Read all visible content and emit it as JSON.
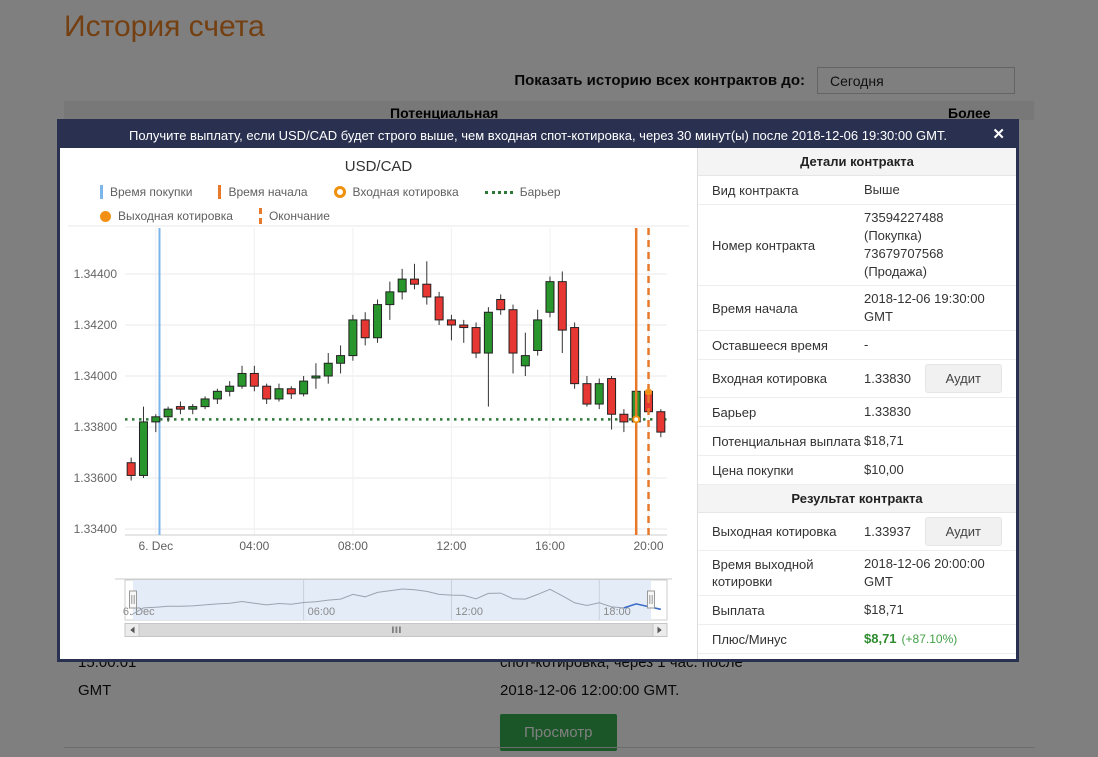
{
  "page": {
    "title": "История счета",
    "filter_label": "Показать историю всех контрактов до:",
    "filter_value": "Сегодня",
    "col_potential": "Потенциальная",
    "col_more": "Более",
    "row_time": "15:00:01",
    "row_gmt": "GMT",
    "row_desc1": "спот-котировка, через 1 час. после",
    "row_desc2": "2018-12-06 12:00:00 GMT.",
    "view_button": "Просмотр"
  },
  "modal": {
    "header": "Получите выплату, если USD/CAD будет строго выше, чем входная спот-котировка, через 30 минут(ы) после 2018-12-06 19:30:00 GMT.",
    "close_icon": "✕"
  },
  "contract_details": {
    "section1_title": "Детали контракта",
    "rows1": [
      {
        "label": "Вид контракта",
        "value": "Выше"
      },
      {
        "label": "Номер контракта",
        "value": [
          "73594227488 (Покупка)",
          "73679707568 (Продажа)"
        ]
      },
      {
        "label": "Время начала",
        "value": "2018-12-06 19:30:00 GMT"
      },
      {
        "label": "Оставшееся время",
        "value": "-"
      },
      {
        "label": "Входная котировка",
        "value": "1.33830",
        "button": "Аудит"
      },
      {
        "label": "Барьер",
        "value": "1.33830"
      },
      {
        "label": "Потенциальная выплата",
        "value": "$18,71"
      },
      {
        "label": "Цена покупки",
        "value": "$10,00"
      }
    ],
    "section2_title": "Результат контракта",
    "rows2": [
      {
        "label": "Выходная котировка",
        "value": "1.33937",
        "button": "Аудит"
      },
      {
        "label": "Время выходной котировки",
        "value": "2018-12-06 20:00:00 GMT"
      },
      {
        "label": "Выплата",
        "value": "$18,71"
      },
      {
        "label": "Плюс/Минус",
        "value": "$8,71",
        "pct": "(+87.10%)",
        "profit": true
      }
    ]
  },
  "chart_data": {
    "type": "candlestick",
    "title": "USD/CAD",
    "symbol": "USD/CAD",
    "period_minutes": 30,
    "y_ticks": [
      1.344,
      1.342,
      1.34,
      1.338,
      1.336,
      1.334
    ],
    "y_ticklabels": [
      "1.34400",
      "1.34200",
      "1.34000",
      "1.33800",
      "1.33600",
      "1.33400"
    ],
    "x_ticks": [
      {
        "index": 2,
        "label": "6. Dec"
      },
      {
        "index": 10,
        "label": "04:00"
      },
      {
        "index": 18,
        "label": "08:00"
      },
      {
        "index": 26,
        "label": "12:00"
      },
      {
        "index": 34,
        "label": "16:00"
      },
      {
        "index": 42,
        "label": "20:00"
      }
    ],
    "ohlc": [
      [
        1.3366,
        1.3368,
        1.3359,
        1.3361
      ],
      [
        1.3361,
        1.3388,
        1.336,
        1.3382
      ],
      [
        1.3382,
        1.3385,
        1.3378,
        1.3384
      ],
      [
        1.3384,
        1.3388,
        1.3382,
        1.3387
      ],
      [
        1.3388,
        1.339,
        1.3385,
        1.3387
      ],
      [
        1.3387,
        1.3389,
        1.3385,
        1.3388
      ],
      [
        1.3388,
        1.3392,
        1.3387,
        1.3391
      ],
      [
        1.3391,
        1.3395,
        1.3389,
        1.3394
      ],
      [
        1.3394,
        1.3398,
        1.3392,
        1.3396
      ],
      [
        1.3396,
        1.3404,
        1.3395,
        1.3401
      ],
      [
        1.3401,
        1.3404,
        1.3394,
        1.3396
      ],
      [
        1.3396,
        1.3397,
        1.3389,
        1.3391
      ],
      [
        1.3391,
        1.3397,
        1.339,
        1.3395
      ],
      [
        1.3395,
        1.3396,
        1.3391,
        1.3393
      ],
      [
        1.3393,
        1.34,
        1.3392,
        1.3398
      ],
      [
        1.34,
        1.3405,
        1.3395,
        1.34
      ],
      [
        1.34,
        1.3409,
        1.3397,
        1.3405
      ],
      [
        1.3405,
        1.3412,
        1.3401,
        1.3408
      ],
      [
        1.3408,
        1.3424,
        1.3406,
        1.3422
      ],
      [
        1.3422,
        1.3425,
        1.3412,
        1.3415
      ],
      [
        1.3415,
        1.343,
        1.3413,
        1.3428
      ],
      [
        1.3428,
        1.3437,
        1.3422,
        1.3433
      ],
      [
        1.3433,
        1.3442,
        1.343,
        1.3438
      ],
      [
        1.3438,
        1.3444,
        1.3434,
        1.3436
      ],
      [
        1.3436,
        1.3445,
        1.3428,
        1.3431
      ],
      [
        1.3431,
        1.3433,
        1.342,
        1.3422
      ],
      [
        1.3422,
        1.3424,
        1.3414,
        1.342
      ],
      [
        1.342,
        1.3422,
        1.3413,
        1.3419
      ],
      [
        1.3419,
        1.3421,
        1.3407,
        1.3409
      ],
      [
        1.3409,
        1.3427,
        1.3388,
        1.3425
      ],
      [
        1.343,
        1.3432,
        1.3424,
        1.3426
      ],
      [
        1.3426,
        1.3428,
        1.3401,
        1.3409
      ],
      [
        1.3404,
        1.3417,
        1.34,
        1.3408
      ],
      [
        1.341,
        1.3426,
        1.3408,
        1.3422
      ],
      [
        1.3425,
        1.3439,
        1.3423,
        1.3437
      ],
      [
        1.3437,
        1.3441,
        1.3409,
        1.3418
      ],
      [
        1.3419,
        1.3421,
        1.3395,
        1.3397
      ],
      [
        1.3397,
        1.34,
        1.3388,
        1.3389
      ],
      [
        1.3389,
        1.3399,
        1.3387,
        1.3397
      ],
      [
        1.3399,
        1.34,
        1.3379,
        1.3385
      ],
      [
        1.3385,
        1.3387,
        1.3378,
        1.3382
      ],
      [
        1.3382,
        1.3396,
        1.3381,
        1.3394
      ],
      [
        1.3394,
        1.3395,
        1.3385,
        1.3386
      ],
      [
        1.3386,
        1.3387,
        1.3376,
        1.3378
      ]
    ],
    "barrier": 1.3383,
    "entry_spot": 1.3383,
    "exit_spot": 1.33937,
    "purchase_time_index": 2.3,
    "start_time_index": 41,
    "end_time_index": 42,
    "legend": [
      {
        "label": "Время покупки",
        "marker": "vline-blue"
      },
      {
        "label": "Время начала",
        "marker": "vline-orange"
      },
      {
        "label": "Входная котировка",
        "marker": "ring-orange"
      },
      {
        "label": "Барьер",
        "marker": "dots-green"
      },
      {
        "label": "Выходная котировка",
        "marker": "dot-orange"
      },
      {
        "label": "Окончание",
        "marker": "vdash-orange"
      }
    ],
    "navigator_ticks": [
      {
        "index": 0.3,
        "label": "6. Dec",
        "line": false
      },
      {
        "index": 14,
        "label": "06:00",
        "line": true
      },
      {
        "index": 26,
        "label": "12:00",
        "line": true
      },
      {
        "index": 38,
        "label": "18:00",
        "line": true
      }
    ],
    "grid": true,
    "legend_position": "top-left"
  },
  "colors": {
    "accent_navy": "#2a3150",
    "heading_orange": "#e98024",
    "candle_up": "#28962c",
    "candle_down": "#e63732",
    "purchase_line_blue": "#7cb5ec",
    "time_line_orange": "#e8792a",
    "barrier_green": "#2d7837",
    "profit_green": "#2e8b2e",
    "view_button_green": "#34ac50"
  }
}
